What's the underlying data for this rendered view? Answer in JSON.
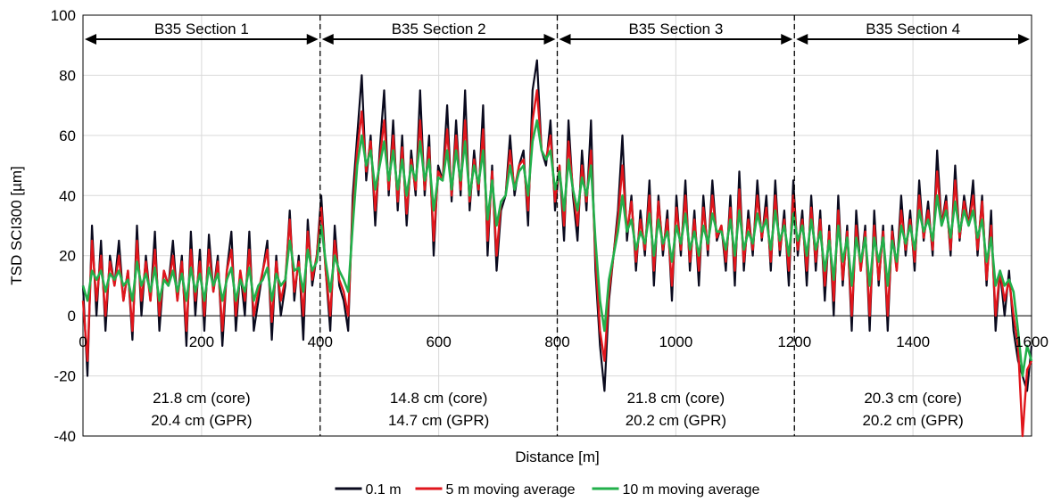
{
  "chart_data": {
    "type": "line",
    "title": "",
    "xlabel": "Distance [m]",
    "ylabel": "TSD SCI300 [µm]",
    "xlim": [
      0,
      1600
    ],
    "ylim": [
      -40,
      100
    ],
    "xticks": [
      0,
      200,
      400,
      600,
      800,
      1000,
      1200,
      1400,
      1600
    ],
    "yticks": [
      -40,
      -20,
      0,
      20,
      40,
      60,
      80,
      100
    ],
    "grid": true,
    "legend_position": "bottom",
    "section_boundaries": [
      400,
      800,
      1200
    ],
    "sections": [
      {
        "label": "B35 Section 1",
        "start": 0,
        "end": 400,
        "core": "21.8 cm (core)",
        "gpr": "20.4 cm (GPR)"
      },
      {
        "label": "B35 Section 2",
        "start": 400,
        "end": 800,
        "core": "14.8 cm (core)",
        "gpr": "14.7 cm (GPR)"
      },
      {
        "label": "B35 Section 3",
        "start": 800,
        "end": 1200,
        "core": "21.8 cm (core)",
        "gpr": "20.2 cm (GPR)"
      },
      {
        "label": "B35 Section 4",
        "start": 1200,
        "end": 1600,
        "core": "20.3 cm (core)",
        "gpr": "20.2 cm (GPR)"
      }
    ],
    "x_step": 10,
    "series": [
      {
        "name": "0.1 m",
        "color": "#0a0a1e",
        "values": [
          10,
          -20,
          30,
          0,
          25,
          -5,
          20,
          10,
          25,
          5,
          15,
          -8,
          30,
          0,
          20,
          5,
          28,
          -5,
          15,
          10,
          25,
          5,
          20,
          -10,
          28,
          0,
          22,
          -5,
          27,
          8,
          20,
          -10,
          15,
          28,
          -5,
          15,
          0,
          28,
          -5,
          5,
          15,
          25,
          -8,
          20,
          0,
          10,
          35,
          5,
          20,
          -8,
          32,
          10,
          20,
          40,
          15,
          -5,
          30,
          10,
          5,
          -5,
          40,
          60,
          80,
          45,
          60,
          30,
          55,
          75,
          40,
          65,
          35,
          60,
          30,
          55,
          40,
          75,
          40,
          60,
          20,
          50,
          45,
          70,
          38,
          65,
          40,
          75,
          35,
          55,
          40,
          70,
          20,
          50,
          15,
          35,
          40,
          60,
          40,
          50,
          55,
          30,
          75,
          85,
          55,
          50,
          65,
          35,
          50,
          25,
          65,
          40,
          25,
          55,
          35,
          65,
          15,
          -10,
          -25,
          5,
          20,
          35,
          60,
          25,
          40,
          15,
          35,
          20,
          45,
          10,
          40,
          20,
          35,
          5,
          40,
          20,
          45,
          15,
          35,
          10,
          40,
          20,
          45,
          25,
          30,
          15,
          40,
          10,
          48,
          15,
          35,
          20,
          45,
          25,
          40,
          15,
          45,
          20,
          35,
          10,
          45,
          20,
          35,
          10,
          40,
          15,
          35,
          5,
          30,
          0,
          40,
          10,
          30,
          -5,
          35,
          15,
          30,
          -5,
          35,
          10,
          30,
          -5,
          30,
          15,
          40,
          20,
          35,
          15,
          45,
          25,
          38,
          20,
          55,
          30,
          40,
          20,
          50,
          25,
          40,
          30,
          45,
          20,
          40,
          10,
          35,
          -5,
          15,
          0,
          15,
          -5,
          -15,
          -20,
          -25,
          -10
        ],
        "data_note": ""
      },
      {
        "name": "5 m moving average",
        "color": "#e0161c",
        "values": [
          5,
          -15,
          25,
          5,
          20,
          0,
          18,
          10,
          20,
          5,
          15,
          -5,
          25,
          5,
          18,
          5,
          22,
          0,
          15,
          10,
          20,
          5,
          18,
          -5,
          22,
          5,
          18,
          0,
          22,
          8,
          18,
          -5,
          15,
          22,
          0,
          15,
          5,
          22,
          0,
          8,
          15,
          22,
          -2,
          18,
          5,
          12,
          32,
          8,
          18,
          0,
          28,
          12,
          20,
          36,
          15,
          0,
          25,
          12,
          8,
          0,
          35,
          55,
          68,
          48,
          58,
          35,
          52,
          65,
          42,
          60,
          38,
          56,
          34,
          52,
          42,
          65,
          42,
          56,
          25,
          48,
          45,
          62,
          40,
          60,
          42,
          65,
          38,
          52,
          42,
          62,
          25,
          48,
          20,
          38,
          40,
          55,
          42,
          50,
          52,
          35,
          65,
          75,
          55,
          52,
          60,
          38,
          50,
          30,
          58,
          42,
          30,
          50,
          38,
          55,
          20,
          -5,
          -15,
          8,
          20,
          32,
          50,
          28,
          38,
          18,
          32,
          22,
          40,
          15,
          38,
          22,
          32,
          10,
          36,
          22,
          40,
          18,
          32,
          15,
          36,
          22,
          40,
          26,
          30,
          18,
          36,
          15,
          42,
          18,
          32,
          22,
          40,
          26,
          36,
          18,
          40,
          22,
          32,
          15,
          40,
          22,
          32,
          15,
          36,
          18,
          32,
          10,
          28,
          5,
          35,
          12,
          28,
          0,
          30,
          15,
          28,
          0,
          30,
          12,
          28,
          0,
          28,
          15,
          35,
          22,
          32,
          18,
          40,
          26,
          35,
          22,
          48,
          30,
          38,
          22,
          45,
          26,
          38,
          30,
          40,
          22,
          38,
          12,
          30,
          0,
          15,
          5,
          12,
          0,
          -10,
          -40,
          -18,
          -15
        ],
        "data_note": ""
      },
      {
        "name": "10 m moving average",
        "color": "#22b04b",
        "values": [
          10,
          5,
          15,
          12,
          15,
          8,
          14,
          12,
          15,
          10,
          12,
          5,
          18,
          10,
          14,
          8,
          16,
          5,
          12,
          10,
          15,
          8,
          14,
          5,
          16,
          8,
          14,
          5,
          16,
          10,
          14,
          5,
          12,
          16,
          5,
          12,
          8,
          16,
          5,
          10,
          12,
          16,
          5,
          14,
          10,
          12,
          25,
          15,
          16,
          8,
          22,
          15,
          18,
          30,
          18,
          8,
          20,
          15,
          12,
          8,
          30,
          50,
          60,
          50,
          55,
          42,
          50,
          58,
          45,
          55,
          42,
          52,
          40,
          50,
          45,
          58,
          45,
          52,
          35,
          46,
          45,
          55,
          42,
          55,
          45,
          58,
          40,
          50,
          44,
          55,
          32,
          45,
          30,
          38,
          40,
          50,
          42,
          48,
          50,
          40,
          58,
          65,
          55,
          52,
          55,
          42,
          48,
          35,
          52,
          42,
          35,
          46,
          40,
          50,
          25,
          5,
          -5,
          12,
          20,
          28,
          40,
          28,
          32,
          22,
          28,
          24,
          34,
          20,
          32,
          24,
          28,
          18,
          30,
          24,
          34,
          22,
          28,
          20,
          30,
          24,
          34,
          28,
          28,
          22,
          32,
          20,
          35,
          22,
          28,
          24,
          34,
          28,
          32,
          22,
          35,
          25,
          30,
          20,
          34,
          25,
          30,
          20,
          32,
          22,
          28,
          15,
          25,
          12,
          30,
          18,
          26,
          10,
          26,
          18,
          26,
          10,
          26,
          18,
          26,
          10,
          25,
          18,
          30,
          24,
          30,
          22,
          35,
          28,
          32,
          25,
          40,
          30,
          35,
          26,
          38,
          28,
          35,
          30,
          35,
          26,
          32,
          18,
          26,
          10,
          15,
          10,
          12,
          8,
          -5,
          -20,
          -10,
          -15
        ],
        "data_note": ""
      }
    ]
  }
}
